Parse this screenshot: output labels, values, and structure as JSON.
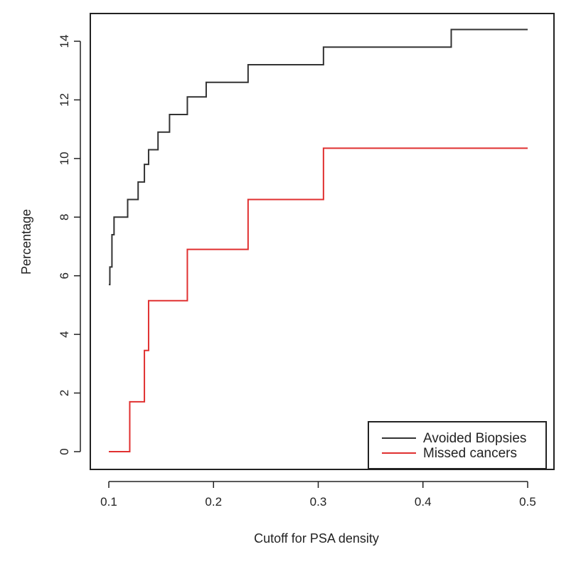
{
  "chart_data": {
    "type": "line",
    "xlabel": "Cutoff for PSA density",
    "ylabel": "Percentage",
    "xlim": [
      0.1,
      0.5
    ],
    "ylim": [
      0,
      14
    ],
    "xticks": [
      "0.1",
      "0.2",
      "0.3",
      "0.4",
      "0.5"
    ],
    "yticks": [
      "0",
      "2",
      "4",
      "6",
      "8",
      "10",
      "12",
      "14"
    ],
    "grid": false,
    "legend_position": "bottom-right",
    "step": true,
    "series": [
      {
        "name": "Avoided Biopsies",
        "color": "#333333",
        "x": [
          0.1,
          0.101,
          0.103,
          0.105,
          0.118,
          0.128,
          0.134,
          0.138,
          0.147,
          0.158,
          0.175,
          0.193,
          0.233,
          0.305,
          0.427,
          0.5
        ],
        "y": [
          5.7,
          6.3,
          7.4,
          8.0,
          8.6,
          9.2,
          9.8,
          10.3,
          10.9,
          11.5,
          12.1,
          12.6,
          13.2,
          13.8,
          14.4,
          14.4
        ]
      },
      {
        "name": "Missed cancers",
        "color": "#e03030",
        "x": [
          0.1,
          0.12,
          0.134,
          0.138,
          0.175,
          0.233,
          0.305,
          0.5
        ],
        "y": [
          0,
          1.7,
          3.45,
          5.15,
          6.9,
          8.6,
          10.35,
          10.35
        ]
      }
    ]
  }
}
